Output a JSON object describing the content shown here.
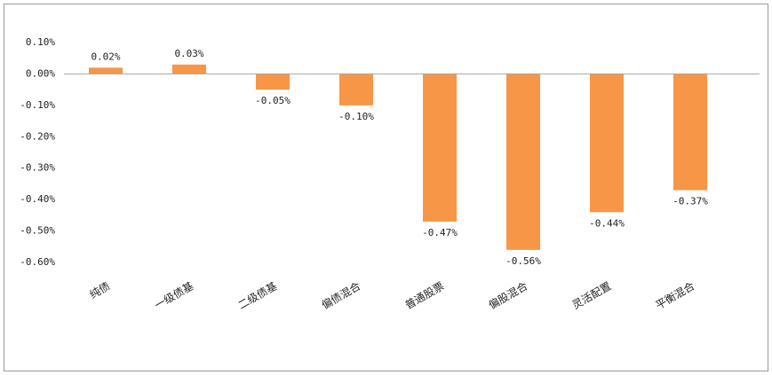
{
  "chart_data": {
    "type": "bar",
    "categories": [
      "纯债",
      "一级债基",
      "二级债基",
      "偏债混合",
      "普通股票",
      "偏股混合",
      "灵活配置",
      "平衡混合"
    ],
    "values": [
      0.02,
      0.03,
      -0.05,
      -0.1,
      -0.47,
      -0.56,
      -0.44,
      -0.37
    ],
    "value_labels": [
      "0.02%",
      "0.03%",
      "-0.05%",
      "-0.10%",
      "-0.47%",
      "-0.56%",
      "-0.44%",
      "-0.37%"
    ],
    "color": "#f79646",
    "ylim": [
      -0.6,
      0.1
    ],
    "yticks": [
      {
        "value": 0.1,
        "label": "0.10%"
      },
      {
        "value": 0.0,
        "label": "0.00%"
      },
      {
        "value": -0.1,
        "label": "-0.10%"
      },
      {
        "value": -0.2,
        "label": "-0.20%"
      },
      {
        "value": -0.3,
        "label": "-0.30%"
      },
      {
        "value": -0.4,
        "label": "-0.40%"
      },
      {
        "value": -0.5,
        "label": "-0.50%"
      },
      {
        "value": -0.6,
        "label": "-0.60%"
      }
    ],
    "grid": false
  }
}
